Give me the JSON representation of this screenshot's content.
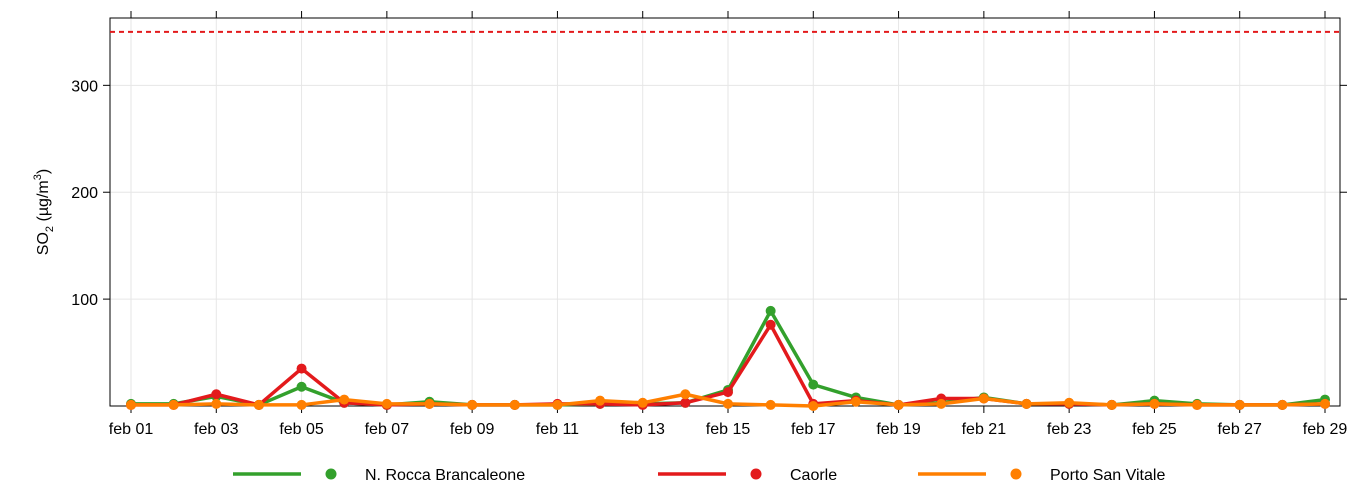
{
  "chart_data": {
    "type": "line",
    "y_label": {
      "base": "SO",
      "sub": "2",
      "unit": " (µg/m",
      "sup": "3",
      "close": ")"
    },
    "categories": [
      "feb 01",
      null,
      "feb 03",
      null,
      "feb 05",
      null,
      "feb 07",
      null,
      "feb 09",
      null,
      "feb 11",
      null,
      "feb 13",
      null,
      "feb 15",
      null,
      "feb 17",
      null,
      "feb 19",
      null,
      "feb 21",
      null,
      "feb 23",
      null,
      "feb 25",
      null,
      "feb 27",
      null,
      "feb 29"
    ],
    "series": [
      {
        "name": "N. Rocca Brancaleone",
        "color": "#33a02c",
        "values": [
          2,
          2,
          9,
          1,
          18,
          3,
          1,
          4,
          1,
          1,
          1,
          2,
          2,
          3,
          15,
          89,
          20,
          8,
          1,
          3,
          8,
          2,
          2,
          1,
          5,
          2,
          1,
          1,
          6
        ]
      },
      {
        "name": "Caorle",
        "color": "#e31a1c",
        "values": [
          1,
          1,
          11,
          1,
          35,
          3,
          1,
          2,
          1,
          1,
          2,
          2,
          1,
          3,
          13,
          76,
          2,
          5,
          1,
          7,
          7,
          2,
          2,
          1,
          2,
          1,
          1,
          1,
          2
        ]
      },
      {
        "name": "Porto San Vitale",
        "color": "#ff7f00",
        "values": [
          1,
          1,
          2,
          1,
          1,
          6,
          2,
          2,
          1,
          1,
          1,
          5,
          3,
          11,
          2,
          1,
          0,
          4,
          1,
          2,
          7,
          2,
          3,
          1,
          2,
          1,
          1,
          1,
          2
        ]
      }
    ],
    "threshold": {
      "value": 350,
      "color": "#e31a1c"
    },
    "ylim": [
      0,
      363
    ],
    "yticks": [
      100,
      200,
      300
    ],
    "grid": true,
    "legend": "bottom"
  }
}
